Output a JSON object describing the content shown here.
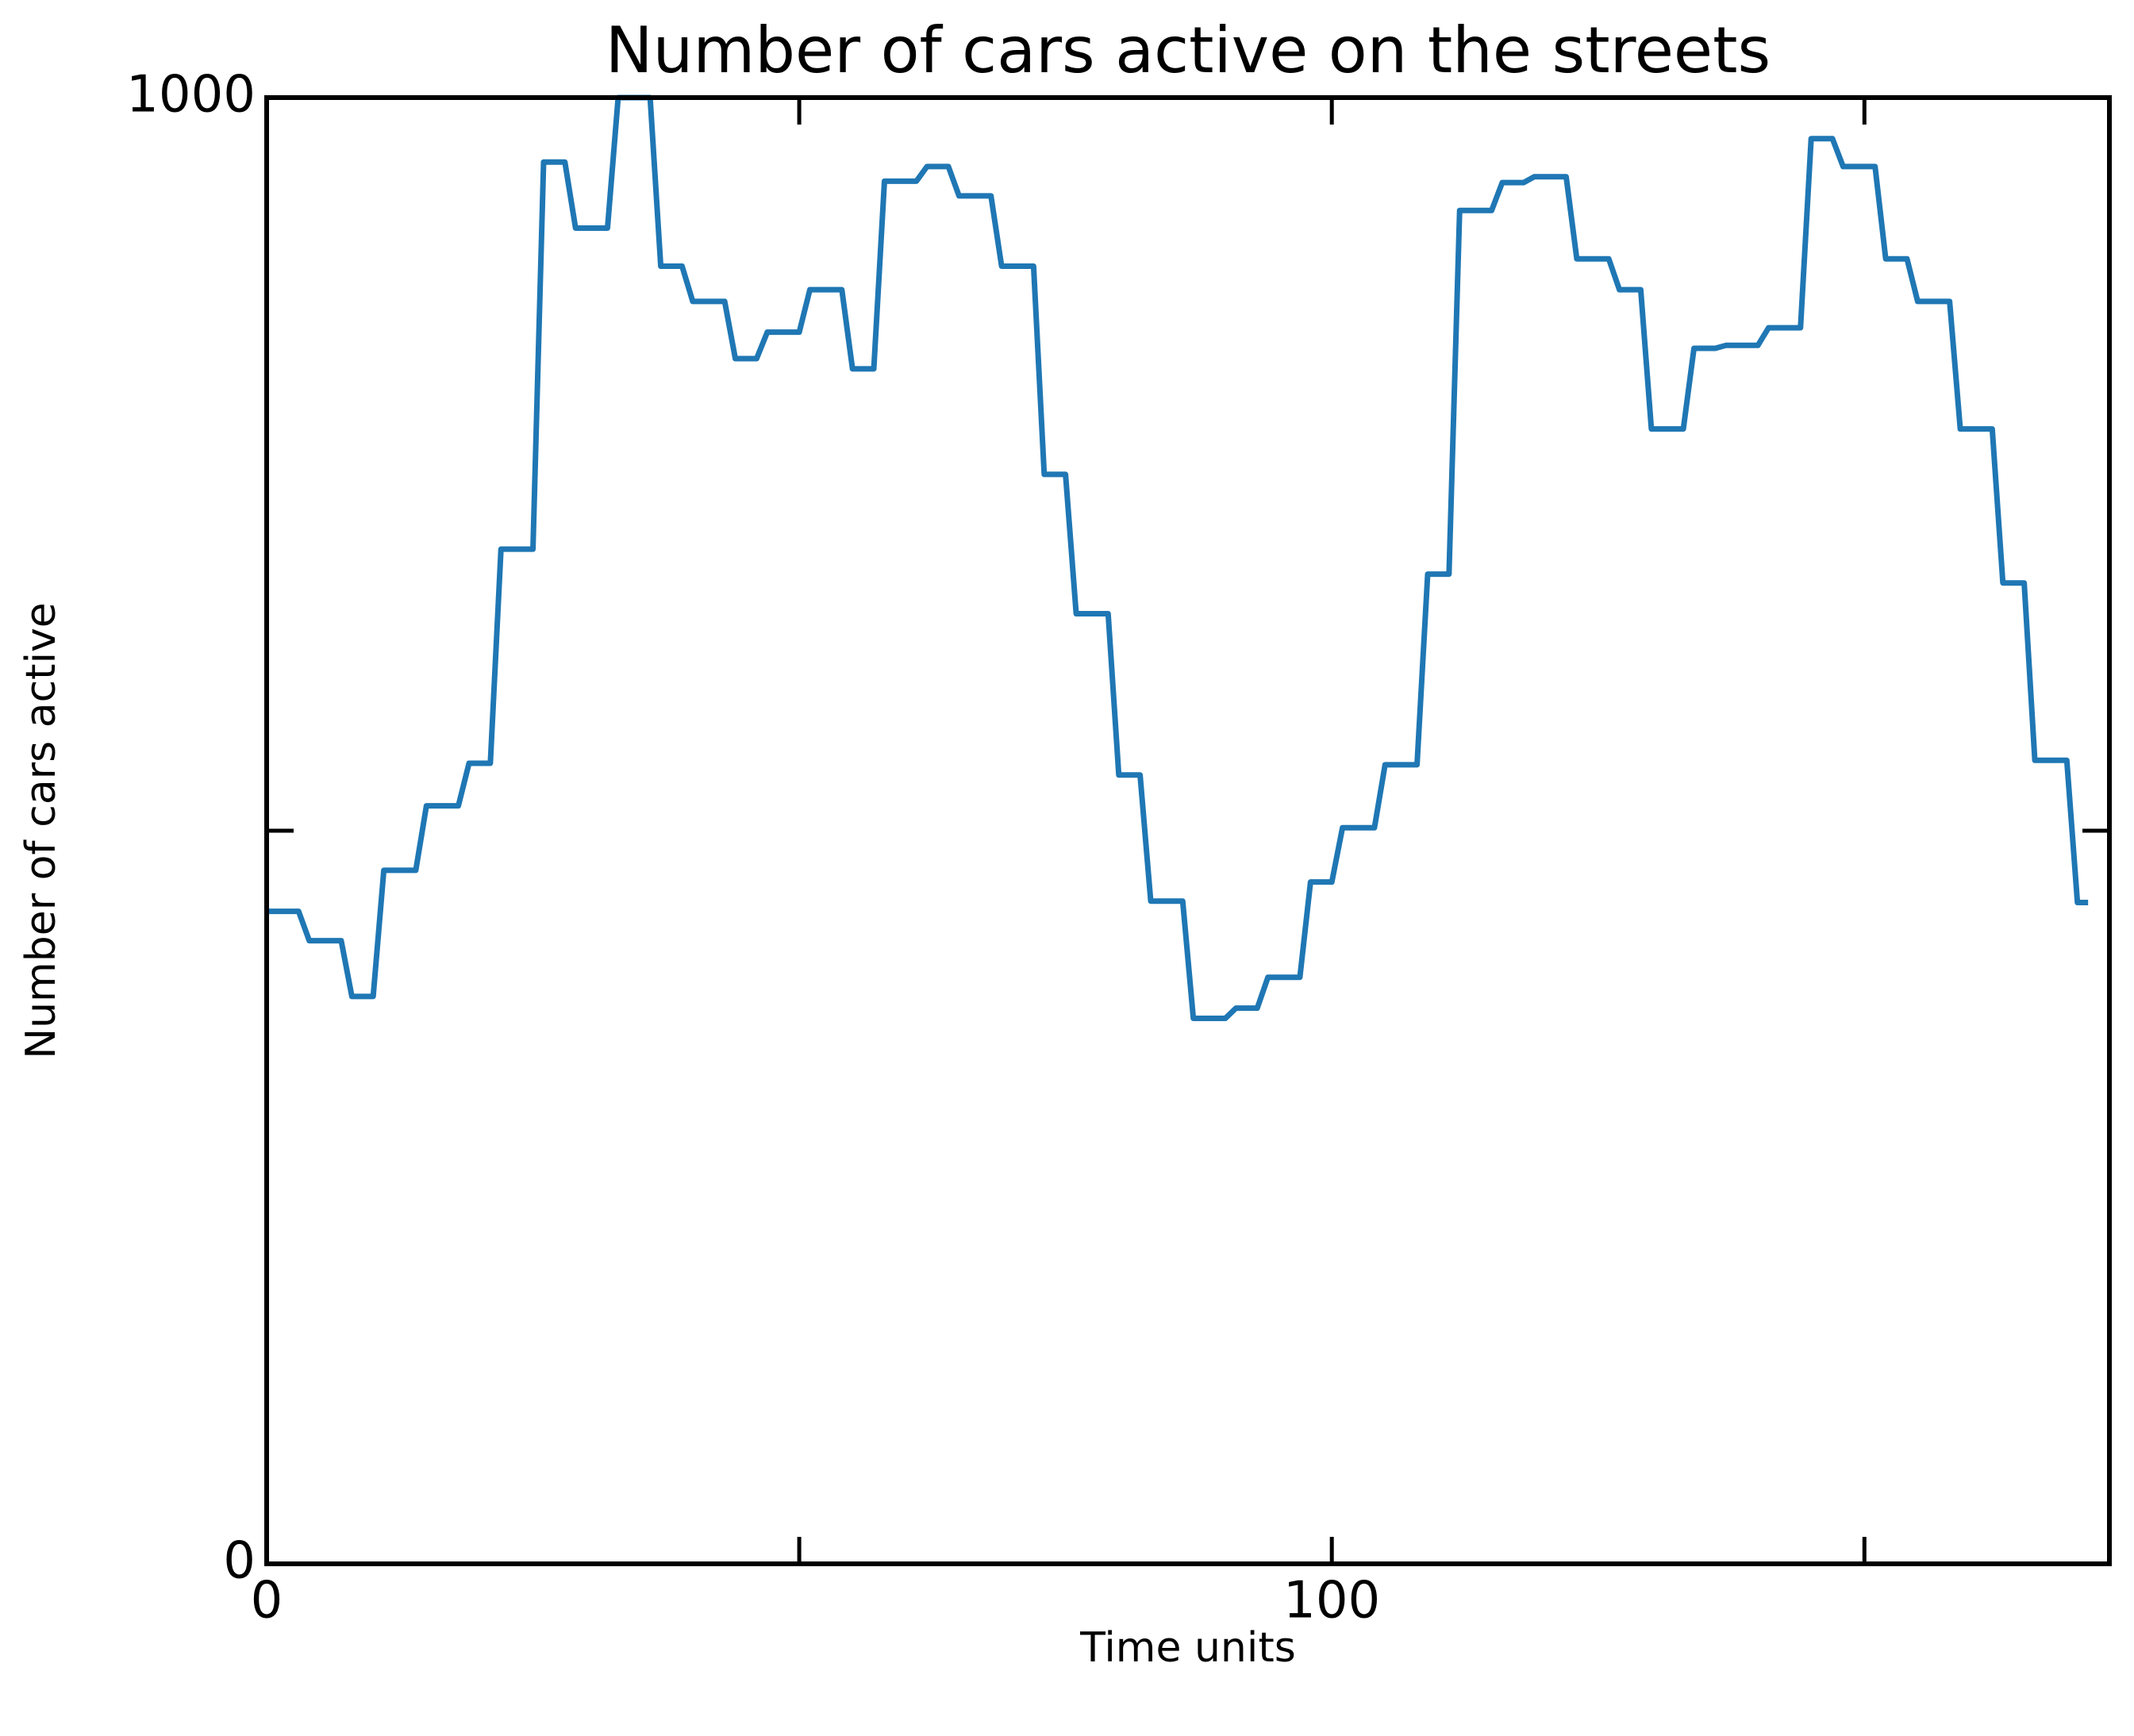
{
  "chart_data": {
    "type": "line",
    "title": "Number of cars active on the streets",
    "x_label": "Time units",
    "y_label": "Number of cars active",
    "x": [
      0,
      3,
      4,
      7,
      8,
      10,
      11,
      14,
      15,
      18,
      19,
      21,
      22,
      25,
      26,
      28,
      29,
      32,
      33,
      36,
      37,
      39,
      40,
      43,
      44,
      46,
      47,
      50,
      51,
      54,
      55,
      57,
      58,
      61,
      62,
      64,
      65,
      68,
      69,
      72,
      73,
      75,
      76,
      79,
      80,
      82,
      83,
      86,
      87,
      90,
      91,
      93,
      94,
      97,
      98,
      100,
      101,
      104,
      105,
      108,
      109,
      111,
      112,
      115,
      116,
      118,
      119,
      122,
      123,
      126,
      127,
      129,
      130,
      133,
      134,
      136,
      137,
      140,
      141,
      144,
      145,
      147,
      148,
      151,
      152,
      154,
      155,
      158,
      159,
      162,
      163,
      165,
      166,
      169,
      170,
      171
    ],
    "series": [
      {
        "color": "#1f77b4",
        "values": [
          445,
          445,
          425,
          425,
          387,
          387,
          473,
          473,
          517,
          517,
          546,
          546,
          692,
          692,
          956,
          956,
          911,
          911,
          1000,
          1000,
          885,
          885,
          861,
          861,
          822,
          822,
          840,
          840,
          869,
          869,
          815,
          815,
          943,
          943,
          953,
          953,
          933,
          933,
          885,
          885,
          743,
          743,
          648,
          648,
          538,
          538,
          452,
          452,
          372,
          372,
          379,
          379,
          400,
          400,
          465,
          465,
          502,
          502,
          545,
          545,
          675,
          675,
          923,
          923,
          942,
          942,
          946,
          946,
          890,
          890,
          869,
          869,
          774,
          774,
          829,
          829,
          831,
          831,
          843,
          843,
          972,
          972,
          953,
          953,
          890,
          890,
          861,
          861,
          774,
          774,
          669,
          669,
          548,
          548,
          451,
          451
        ]
      }
    ],
    "xlim": [
      0,
      173
    ],
    "ylim": [
      0,
      1000
    ],
    "xticks": [
      0,
      100
    ],
    "xminorticks": [
      50,
      150
    ],
    "yticks": [
      0,
      1000
    ],
    "yminorticks": [
      500
    ],
    "grid": false
  }
}
